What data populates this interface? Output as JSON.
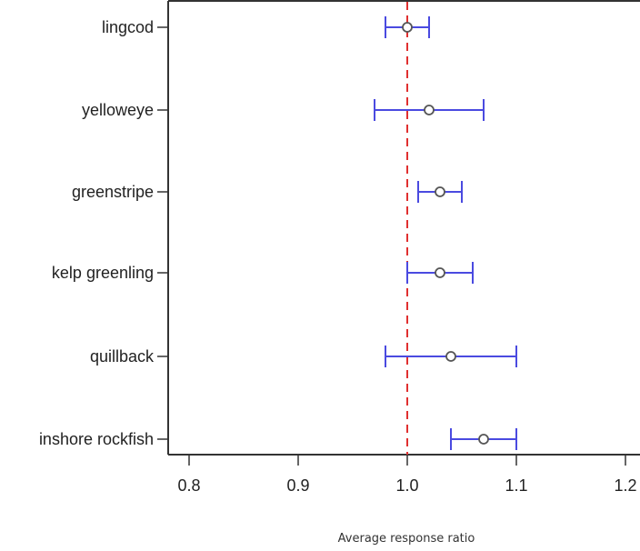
{
  "chart_data": {
    "type": "scatter",
    "subtype": "error-bar",
    "title": "",
    "xlabel": "Average response ratio",
    "ylabel": "",
    "xlim": [
      0.79,
      1.22
    ],
    "xticks": [
      0.8,
      0.9,
      1.0,
      1.1,
      1.2
    ],
    "xtick_labels": [
      "0.8",
      "0.9",
      "1.0",
      "1.1",
      "1.2"
    ],
    "reference_line": {
      "x": 1.0,
      "style": "dashed",
      "color": "#e03030"
    },
    "grid": false,
    "legend": "none",
    "colors": {
      "interval": "#4a4ae0",
      "point": "#555555",
      "axis": "#333333"
    },
    "categories": [
      "lingcod",
      "yelloweye",
      "greenstripe",
      "kelp greenling",
      "quillback",
      "inshore rockfish"
    ],
    "points": [
      {
        "label": "lingcod",
        "mean": 1.0,
        "lower": 0.98,
        "upper": 1.02
      },
      {
        "label": "yelloweye",
        "mean": 1.02,
        "lower": 0.97,
        "upper": 1.07
      },
      {
        "label": "greenstripe",
        "mean": 1.03,
        "lower": 1.01,
        "upper": 1.05
      },
      {
        "label": "kelp greenling",
        "mean": 1.03,
        "lower": 1.0,
        "upper": 1.06
      },
      {
        "label": "quillback",
        "mean": 1.04,
        "lower": 0.98,
        "upper": 1.1
      },
      {
        "label": "inshore rockfish",
        "mean": 1.07,
        "lower": 1.04,
        "upper": 1.1
      }
    ]
  }
}
